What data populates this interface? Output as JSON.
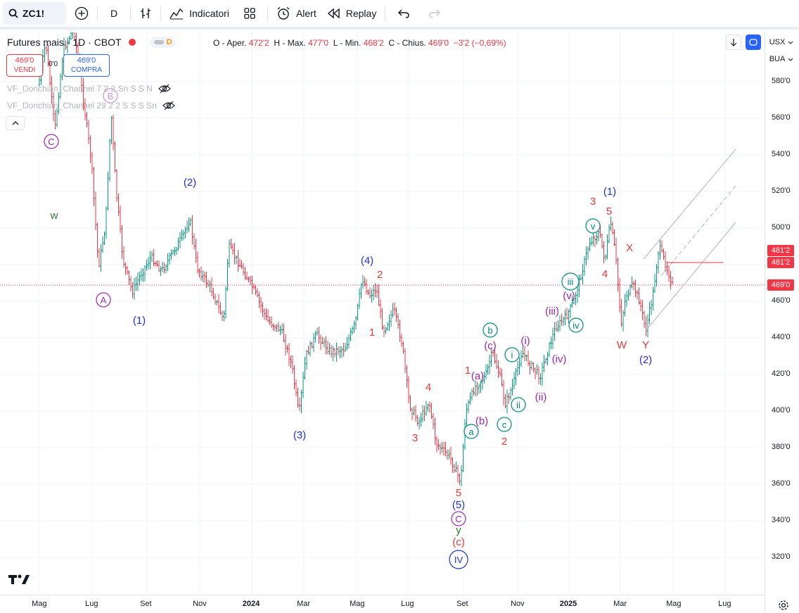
{
  "toolbar": {
    "symbol": "ZC1!",
    "interval": "D",
    "indicators_label": "Indicatori",
    "alert_label": "Alert",
    "replay_label": "Replay"
  },
  "legend": {
    "title": "Futures mais · 1D · CBOT",
    "open_label": "O - Aper.",
    "open": "472'2",
    "high_label": "H - Max.",
    "high": "477'0",
    "low_label": "L - Min.",
    "low": "468'2",
    "close_label": "C - Chius.",
    "close": "469'0",
    "change": "−3'2 (−0,69%)",
    "d_badge": "D"
  },
  "trade": {
    "sell_price": "469'0",
    "sell_label": "VENDI",
    "spread": "0'0",
    "buy_price": "469'0",
    "buy_label": "COMPRA"
  },
  "indicators": [
    {
      "name": "VF_Donchian_Channel 7 2 2 Sn S S N"
    },
    {
      "name": "VF_Donchian_Channel 29 2 2 S S S Sn"
    }
  ],
  "price_axis": {
    "currency": "USX",
    "unit": "BUA",
    "ticks": [
      "580'0",
      "560'0",
      "540'0",
      "520'0",
      "500'0",
      "480'0",
      "460'0",
      "440'0",
      "420'0",
      "400'0",
      "380'0",
      "360'0",
      "340'0",
      "320'0"
    ],
    "tags": [
      "481'2",
      "481'2",
      "469'0"
    ]
  },
  "time_axis": {
    "labels": [
      "Mag",
      "Lug",
      "Set",
      "Nov",
      "2024",
      "Mar",
      "Mag",
      "Lug",
      "Set",
      "Nov",
      "2025",
      "Mar",
      "Mag",
      "Lug"
    ]
  },
  "colors": {
    "up": "#089981",
    "down": "#f23645",
    "blue": "#2130c9",
    "purple": "#9c27b0",
    "red": "#e53935",
    "teal": "#00897b",
    "green": "#2e7d32"
  },
  "wave_labels": [
    {
      "text": "C",
      "style": "circle-purple"
    },
    {
      "text": "B",
      "style": "circle-pink"
    },
    {
      "text": "w",
      "style": "green"
    },
    {
      "text": "A",
      "style": "circle-purple"
    },
    {
      "text": "(1)",
      "style": "blue"
    },
    {
      "text": "(2)",
      "style": "blue"
    },
    {
      "text": "(3)",
      "style": "blue"
    },
    {
      "text": "(4)",
      "style": "blue"
    },
    {
      "text": "2",
      "style": "red"
    },
    {
      "text": "1",
      "style": "red"
    },
    {
      "text": "4",
      "style": "red"
    },
    {
      "text": "3",
      "style": "red"
    },
    {
      "text": "5",
      "style": "red"
    },
    {
      "text": "(5)",
      "style": "blue"
    },
    {
      "text": "C",
      "style": "circle-purple"
    },
    {
      "text": "y",
      "style": "green"
    },
    {
      "text": "(c)",
      "style": "red"
    },
    {
      "text": "IV",
      "style": "circle-blue"
    },
    {
      "text": "1",
      "style": "red"
    },
    {
      "text": "(a)",
      "style": "purple"
    },
    {
      "text": "(b)",
      "style": "purple"
    },
    {
      "text": "a",
      "style": "circle-teal"
    },
    {
      "text": "b",
      "style": "circle-teal"
    },
    {
      "text": "(c)",
      "style": "purple"
    },
    {
      "text": "c",
      "style": "circle-teal"
    },
    {
      "text": "2",
      "style": "red"
    },
    {
      "text": "i",
      "style": "circle-teal"
    },
    {
      "text": "(i)",
      "style": "purple"
    },
    {
      "text": "ii",
      "style": "circle-teal"
    },
    {
      "text": "(ii)",
      "style": "purple"
    },
    {
      "text": "(iii)",
      "style": "purple"
    },
    {
      "text": "(iv)",
      "style": "purple"
    },
    {
      "text": "(v)",
      "style": "purple"
    },
    {
      "text": "iii",
      "style": "circle-teal"
    },
    {
      "text": "iv",
      "style": "circle-teal"
    },
    {
      "text": "v",
      "style": "circle-teal"
    },
    {
      "text": "3",
      "style": "red"
    },
    {
      "text": "(1)",
      "style": "blue"
    },
    {
      "text": "5",
      "style": "red"
    },
    {
      "text": "4",
      "style": "red"
    },
    {
      "text": "X",
      "style": "red"
    },
    {
      "text": "W",
      "style": "red"
    },
    {
      "text": "Y",
      "style": "red"
    },
    {
      "text": "(2)",
      "style": "blue"
    }
  ]
}
